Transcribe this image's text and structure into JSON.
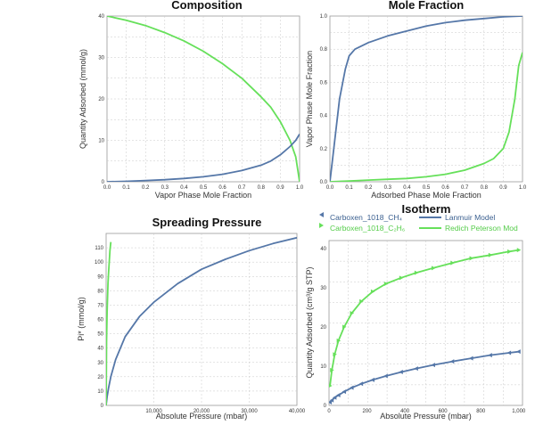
{
  "colors": {
    "blue": "#5577a8",
    "green": "#66e05a",
    "grid": "#c8c8c8",
    "frame": "#999999"
  },
  "chart_data": [
    {
      "type": "line",
      "title": "Composition",
      "xlabel": "Vapor Phase Mole Fraction",
      "ylabel": "Quantity Adsorbed (mmol/g)",
      "xlim": [
        0,
        1
      ],
      "ylim": [
        0,
        40
      ],
      "xticks": [
        "0.0",
        "0.1",
        "0.2",
        "0.3",
        "0.4",
        "0.5",
        "0.6",
        "0.7",
        "0.8",
        "0.9",
        "1.0"
      ],
      "yticks": [
        "0",
        "10",
        "20",
        "30",
        "40"
      ],
      "series": [
        {
          "color": "green",
          "x": [
            0,
            0.1,
            0.2,
            0.3,
            0.4,
            0.5,
            0.6,
            0.7,
            0.8,
            0.85,
            0.9,
            0.95,
            0.98,
            1.0
          ],
          "y": [
            40,
            39,
            37.7,
            36,
            34,
            31.5,
            28.5,
            25,
            20.5,
            18,
            14.5,
            10,
            6,
            0
          ]
        },
        {
          "color": "blue",
          "x": [
            0,
            0.1,
            0.2,
            0.3,
            0.4,
            0.5,
            0.6,
            0.7,
            0.8,
            0.85,
            0.9,
            0.95,
            0.98,
            1.0
          ],
          "y": [
            0,
            0.1,
            0.3,
            0.5,
            0.8,
            1.2,
            1.8,
            2.7,
            4,
            5,
            6.5,
            8.5,
            10,
            11.5
          ]
        }
      ]
    },
    {
      "type": "line",
      "title": "Mole Fraction",
      "xlabel": "Adsorbed Phase Mole Fraction",
      "ylabel": "Vapor Phase Mole Fraction",
      "xlim": [
        0,
        1
      ],
      "ylim": [
        0,
        1
      ],
      "xticks": [
        "0.0",
        "0.1",
        "0.2",
        "0.3",
        "0.4",
        "0.5",
        "0.6",
        "0.7",
        "0.8",
        "0.9",
        "1.0"
      ],
      "yticks": [
        "0.0",
        "0.2",
        "0.4",
        "0.6",
        "0.8",
        "1.0"
      ],
      "series": [
        {
          "color": "blue",
          "x": [
            0,
            0.01,
            0.03,
            0.05,
            0.08,
            0.1,
            0.13,
            0.2,
            0.3,
            0.4,
            0.5,
            0.6,
            0.7,
            0.8,
            0.9,
            1.0
          ],
          "y": [
            0,
            0.1,
            0.3,
            0.5,
            0.68,
            0.76,
            0.8,
            0.84,
            0.88,
            0.91,
            0.94,
            0.96,
            0.975,
            0.985,
            0.995,
            1.0
          ]
        },
        {
          "color": "green",
          "x": [
            0,
            0.1,
            0.2,
            0.3,
            0.4,
            0.5,
            0.6,
            0.7,
            0.8,
            0.85,
            0.9,
            0.93,
            0.96,
            0.98,
            1.0
          ],
          "y": [
            0,
            0.005,
            0.01,
            0.015,
            0.02,
            0.03,
            0.045,
            0.07,
            0.11,
            0.14,
            0.2,
            0.3,
            0.5,
            0.7,
            0.78
          ]
        }
      ]
    },
    {
      "type": "line",
      "title": "Spreading Pressure",
      "xlabel": "Absolute Pressure (mbar)",
      "ylabel": "Pi* (mmol/g)",
      "xlim": [
        0,
        40000
      ],
      "ylim": [
        0,
        120
      ],
      "xticks": [
        "10,000",
        "20,000",
        "30,000",
        "40,000"
      ],
      "yticks": [
        "0",
        "10",
        "20",
        "30",
        "40",
        "50",
        "60",
        "70",
        "80",
        "90",
        "100",
        "110"
      ],
      "series": [
        {
          "color": "blue",
          "x": [
            0,
            200,
            500,
            1000,
            2000,
            4000,
            7000,
            10000,
            15000,
            20000,
            25000,
            30000,
            35000,
            40000
          ],
          "y": [
            0,
            6,
            12,
            20,
            32,
            48,
            62,
            72,
            85,
            95,
            102,
            108,
            113,
            117
          ]
        },
        {
          "color": "green",
          "x": [
            0,
            20,
            40,
            60,
            80,
            100,
            150,
            200,
            300,
            400,
            500,
            600,
            700,
            800,
            1000
          ],
          "y": [
            0,
            8,
            15,
            25,
            35,
            45,
            55,
            65,
            75,
            85,
            92,
            97,
            102,
            108,
            114
          ]
        }
      ]
    },
    {
      "type": "scatter",
      "title": "Isotherm",
      "xlabel": "Absolute Pressure (mbar)",
      "ylabel": "Quantity Adsorbed (cm³/g STP)",
      "xlim": [
        0,
        1020
      ],
      "ylim": [
        0,
        42
      ],
      "xticks": [
        "0",
        "200",
        "400",
        "600",
        "800",
        "1,000"
      ],
      "yticks": [
        "0",
        "10",
        "20",
        "30",
        "40"
      ],
      "legend": [
        {
          "label": "Carboxen_1018_CH₄",
          "color": "blue",
          "kind": "marker"
        },
        {
          "label": "Lanmuir Model",
          "color": "blue",
          "kind": "line"
        },
        {
          "label": "Carboxen_1018_C₂H₆",
          "color": "green",
          "kind": "marker"
        },
        {
          "label": "Redich Peterson Mod",
          "color": "green",
          "kind": "line"
        }
      ],
      "series": [
        {
          "color": "blue",
          "x": [
            5,
            15,
            30,
            50,
            80,
            120,
            170,
            230,
            300,
            380,
            460,
            550,
            650,
            750,
            850,
            950,
            1000
          ],
          "y": [
            0.8,
            1.3,
            2,
            2.6,
            3.5,
            4.5,
            5.5,
            6.5,
            7.5,
            8.5,
            9.4,
            10.3,
            11.2,
            12,
            12.8,
            13.4,
            13.7
          ]
        },
        {
          "color": "green",
          "x": [
            5,
            15,
            30,
            50,
            80,
            120,
            170,
            230,
            300,
            380,
            460,
            550,
            650,
            750,
            850,
            950,
            1000
          ],
          "y": [
            5,
            9,
            13,
            16.5,
            20,
            23.5,
            26.5,
            29,
            31,
            32.5,
            33.8,
            35,
            36.3,
            37.5,
            38.3,
            39.2,
            39.6
          ]
        }
      ]
    }
  ]
}
